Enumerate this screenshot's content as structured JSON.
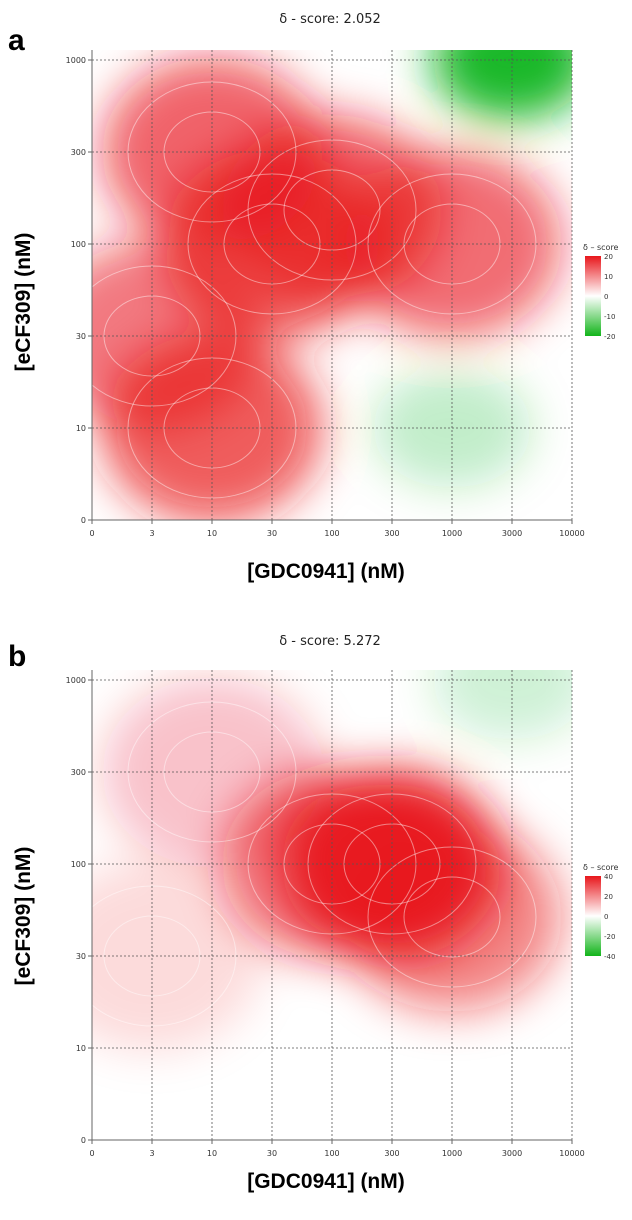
{
  "panels": [
    {
      "letter": "a",
      "title": "δ  - score:  2.052",
      "xlabel": "[GDC0941] (nM)",
      "ylabel": "[eCF309] (nM)"
    },
    {
      "letter": "b",
      "title": "δ  - score:  5.272",
      "xlabel": "[GDC0941] (nM)",
      "ylabel": "[eCF309] (nM)"
    }
  ],
  "chart_data": [
    {
      "type": "heatmap",
      "title": "δ  - score:  2.052",
      "xlabel": "[GDC0941] (nM)",
      "ylabel": "[eCF309] (nM)",
      "x_ticks": [
        "0",
        "3",
        "10",
        "30",
        "100",
        "300",
        "1000",
        "3000",
        "10000"
      ],
      "y_ticks": [
        "0",
        "10",
        "30",
        "100",
        "300",
        "1000"
      ],
      "legend": {
        "title": "δ – score",
        "ticks": [
          "20",
          "10",
          "0",
          "-10",
          "-20"
        ],
        "placement": "right"
      },
      "colors": {
        "positive": "#e8161b",
        "negative": "#12b41a",
        "zero": "#ffffff"
      },
      "hotspots": [
        {
          "x": "10",
          "y": "300",
          "value": 14
        },
        {
          "x": "30",
          "y": "100",
          "value": 15
        },
        {
          "x": "100",
          "y": "150",
          "value": 14
        },
        {
          "x": "10",
          "y": "10",
          "value": 15
        },
        {
          "x": "3",
          "y": "30",
          "value": 12
        },
        {
          "x": "1000",
          "y": "100",
          "value": 13
        },
        {
          "x": "3000",
          "y": "1000",
          "value": -20
        },
        {
          "x": "1000",
          "y": "10",
          "value": -5
        }
      ],
      "grid": true
    },
    {
      "type": "heatmap",
      "title": "δ  - score:  5.272",
      "xlabel": "[GDC0941] (nM)",
      "ylabel": "[eCF309] (nM)",
      "x_ticks": [
        "0",
        "3",
        "10",
        "30",
        "100",
        "300",
        "1000",
        "3000",
        "10000"
      ],
      "y_ticks": [
        "0",
        "10",
        "30",
        "100",
        "300",
        "1000"
      ],
      "legend": {
        "title": "δ – score",
        "ticks": [
          "40",
          "20",
          "0",
          "-20",
          "-40"
        ],
        "placement": "right"
      },
      "colors": {
        "positive": "#e8161b",
        "negative": "#12b41a",
        "zero": "#ffffff"
      },
      "hotspots": [
        {
          "x": "300",
          "y": "100",
          "value": 40
        },
        {
          "x": "100",
          "y": "100",
          "value": 25
        },
        {
          "x": "1000",
          "y": "50",
          "value": 22
        },
        {
          "x": "10",
          "y": "300",
          "value": 10
        },
        {
          "x": "3",
          "y": "30",
          "value": 6
        },
        {
          "x": "3000",
          "y": "1000",
          "value": -8
        }
      ],
      "grid": true
    }
  ]
}
